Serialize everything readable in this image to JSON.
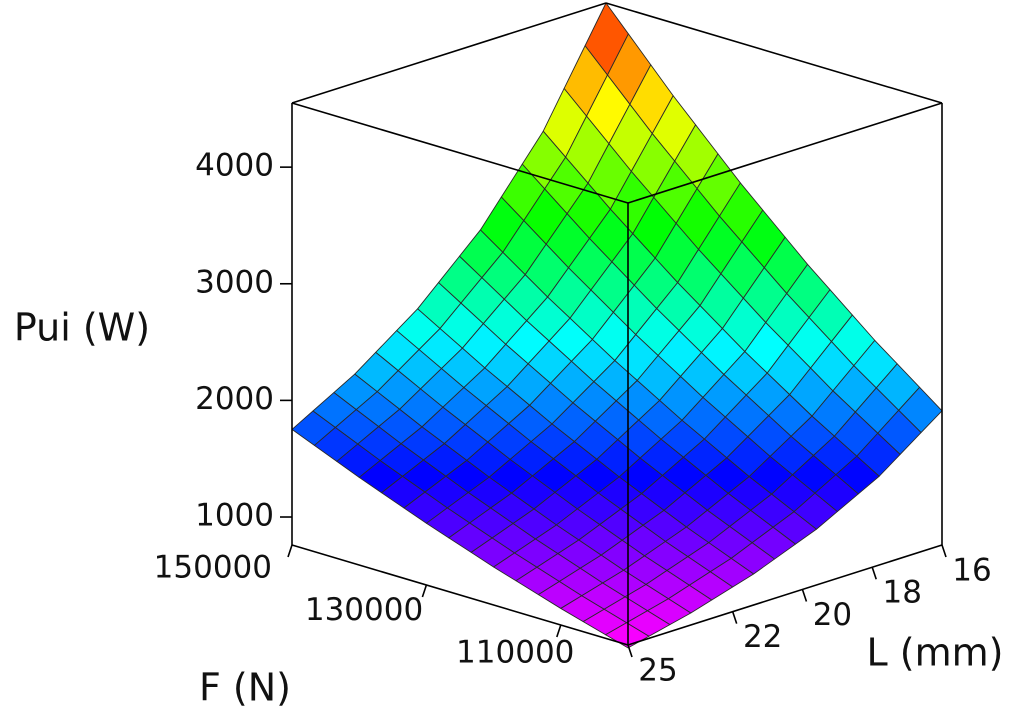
{
  "chart_data": {
    "type": "surface",
    "x_label": "F (N)",
    "y_label": "L (mm)",
    "z_label": "Pui (W)",
    "x": [
      100000,
      110000,
      120000,
      130000,
      140000,
      150000
    ],
    "y": [
      16,
      17.8,
      19.6,
      21.4,
      23.2,
      25
    ],
    "z": [
      [
        1911,
        1521,
        1238,
        1026,
        863,
        735
      ],
      [
        2343,
        1865,
        1518,
        1257,
        1058,
        902
      ],
      [
        2823,
        2247,
        1829,
        1515,
        1275,
        1086
      ],
      [
        3350,
        2667,
        2170,
        1798,
        1513,
        1289
      ],
      [
        3926,
        3125,
        2543,
        2107,
        1773,
        1511
      ],
      [
        4550,
        3622,
        2947,
        2442,
        2054,
        1751
      ]
    ],
    "xlim": [
      100000,
      150000
    ],
    "ylim": [
      16,
      25
    ],
    "zlim": [
      760,
      4550
    ],
    "xticks": [
      110000,
      130000,
      150000
    ],
    "yticks": [
      16,
      18,
      20,
      22,
      25
    ],
    "zticks": [
      1000,
      2000,
      3000,
      4000
    ],
    "colormap": "rainbow"
  }
}
